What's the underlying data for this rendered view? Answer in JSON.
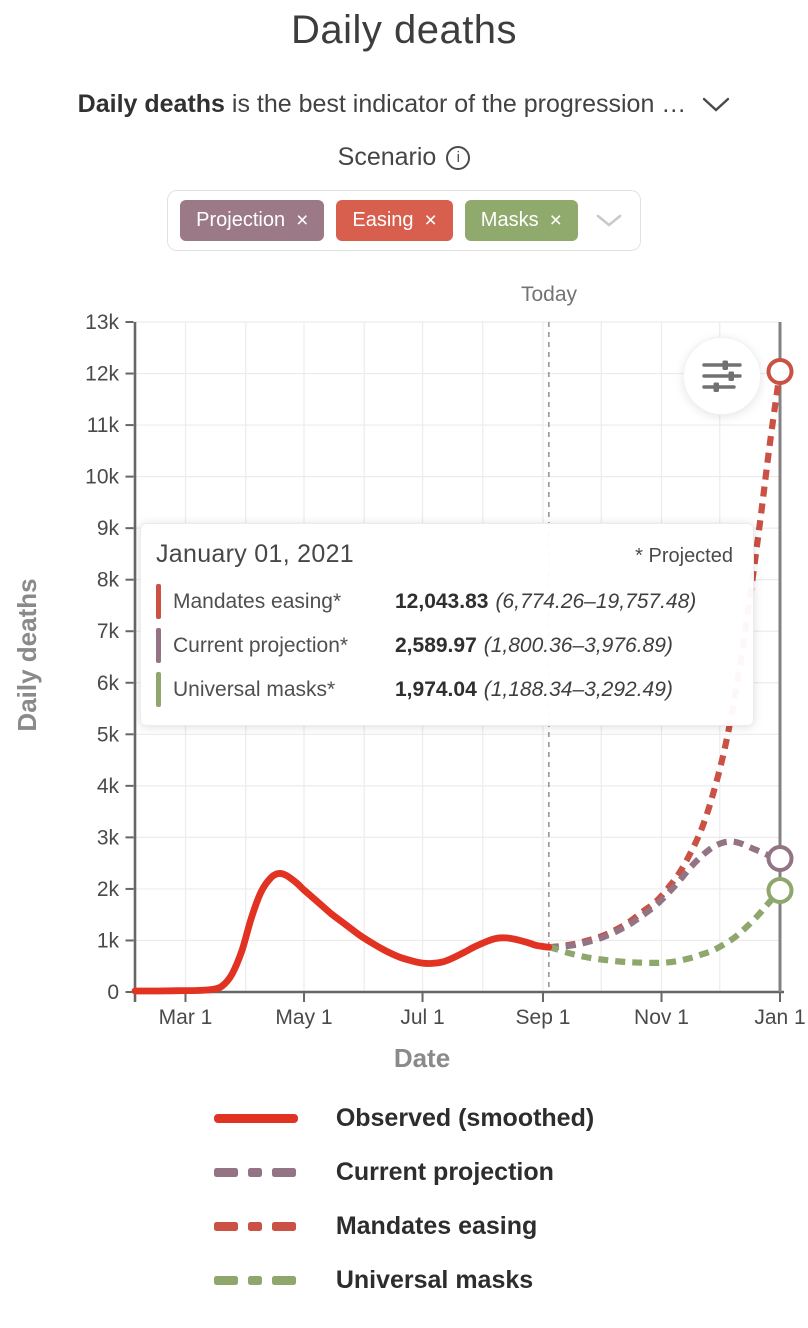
{
  "page": {
    "title": "Daily deaths"
  },
  "subtitle": {
    "lead": "Daily deaths",
    "rest": " is the best indicator of the progression …"
  },
  "scenario": {
    "label": "Scenario"
  },
  "icons": {
    "info": "i",
    "close": "×"
  },
  "chips": {
    "items": [
      {
        "label": "Projection",
        "color": "#9b7987"
      },
      {
        "label": "Easing",
        "color": "#d85f4e"
      },
      {
        "label": "Masks",
        "color": "#90a96d"
      }
    ]
  },
  "chart": {
    "today_label": "Today",
    "x_axis_label": "Date",
    "y_axis_label": "Daily deaths"
  },
  "tooltip": {
    "date": "January 01, 2021",
    "projected_note": "* Projected",
    "rows": [
      {
        "label": "Mandates easing*",
        "value": "12,043.83",
        "range": "(6,774.26–19,757.48)",
        "color": "#ca5143"
      },
      {
        "label": "Current projection*",
        "value": "2,589.97",
        "range": "(1,800.36–3,976.89)",
        "color": "#937384"
      },
      {
        "label": "Universal masks*",
        "value": "1,974.04",
        "range": "(1,188.34–3,292.49)",
        "color": "#8fa76c"
      }
    ]
  },
  "legend": {
    "items": [
      {
        "label": "Observed (smoothed)",
        "style": "solid",
        "color": "#e13222"
      },
      {
        "label": "Current projection",
        "style": "dashed",
        "color": "#937384"
      },
      {
        "label": "Mandates easing",
        "style": "dashed",
        "color": "#ca5143"
      },
      {
        "label": "Universal masks",
        "style": "dashed",
        "color": "#8fa76c"
      }
    ]
  },
  "chart_data": {
    "type": "line",
    "title": "Daily deaths",
    "xlabel": "Date",
    "ylabel": "Daily deaths",
    "x_unit": "days since 2020-02-01",
    "y_unit": "deaths per day, thousands",
    "ylim": [
      0,
      13
    ],
    "x_domain_days": [
      3,
      335
    ],
    "today_day": 216,
    "month_grid_days": [
      29,
      60,
      90,
      121,
      151,
      182,
      213,
      243,
      274,
      304,
      335
    ],
    "x_tick_days": [
      29,
      90,
      151,
      213,
      274,
      335
    ],
    "x_tick_labels": [
      "Mar 1",
      "May 1",
      "Jul 1",
      "Sep 1",
      "Nov 1",
      "Jan 1"
    ],
    "y_tick_labels": [
      "0",
      "1k",
      "2k",
      "3k",
      "4k",
      "5k",
      "6k",
      "7k",
      "8k",
      "9k",
      "10k",
      "11k",
      "12k",
      "13k"
    ],
    "series": [
      {
        "name": "Mandates easing",
        "color": "#ca5143",
        "dashed": true,
        "end_marker": true,
        "points": [
          [
            216,
            0.87
          ],
          [
            222,
            0.89
          ],
          [
            229,
            0.93
          ],
          [
            236,
            1.0
          ],
          [
            243,
            1.08
          ],
          [
            250,
            1.2
          ],
          [
            257,
            1.35
          ],
          [
            264,
            1.55
          ],
          [
            271,
            1.75
          ],
          [
            277,
            2.0
          ],
          [
            283,
            2.3
          ],
          [
            289,
            2.7
          ],
          [
            295,
            3.2
          ],
          [
            301,
            3.9
          ],
          [
            307,
            4.8
          ],
          [
            313,
            6.0
          ],
          [
            319,
            7.5
          ],
          [
            325,
            9.2
          ],
          [
            330,
            10.7
          ],
          [
            335,
            12.04
          ]
        ]
      },
      {
        "name": "Current projection",
        "color": "#937384",
        "dashed": true,
        "end_marker": true,
        "points": [
          [
            216,
            0.87
          ],
          [
            222,
            0.88
          ],
          [
            229,
            0.91
          ],
          [
            236,
            0.97
          ],
          [
            243,
            1.05
          ],
          [
            250,
            1.16
          ],
          [
            257,
            1.3
          ],
          [
            264,
            1.48
          ],
          [
            271,
            1.68
          ],
          [
            277,
            1.9
          ],
          [
            283,
            2.15
          ],
          [
            289,
            2.42
          ],
          [
            295,
            2.65
          ],
          [
            300,
            2.8
          ],
          [
            305,
            2.89
          ],
          [
            310,
            2.92
          ],
          [
            315,
            2.88
          ],
          [
            320,
            2.8
          ],
          [
            325,
            2.72
          ],
          [
            330,
            2.64
          ],
          [
            335,
            2.59
          ]
        ]
      },
      {
        "name": "Universal masks",
        "color": "#8fa76c",
        "dashed": true,
        "end_marker": true,
        "points": [
          [
            216,
            0.87
          ],
          [
            220,
            0.83
          ],
          [
            225,
            0.77
          ],
          [
            230,
            0.72
          ],
          [
            236,
            0.67
          ],
          [
            243,
            0.63
          ],
          [
            250,
            0.6
          ],
          [
            257,
            0.58
          ],
          [
            263,
            0.57
          ],
          [
            270,
            0.565
          ],
          [
            276,
            0.57
          ],
          [
            282,
            0.6
          ],
          [
            288,
            0.65
          ],
          [
            294,
            0.72
          ],
          [
            300,
            0.8
          ],
          [
            306,
            0.92
          ],
          [
            312,
            1.07
          ],
          [
            318,
            1.27
          ],
          [
            324,
            1.5
          ],
          [
            329,
            1.72
          ],
          [
            335,
            1.97
          ]
        ]
      },
      {
        "name": "Observed (smoothed)",
        "color": "#e13222",
        "dashed": false,
        "end_marker": false,
        "points": [
          [
            3,
            0.02
          ],
          [
            15,
            0.02
          ],
          [
            25,
            0.025
          ],
          [
            35,
            0.03
          ],
          [
            43,
            0.05
          ],
          [
            48,
            0.12
          ],
          [
            53,
            0.35
          ],
          [
            58,
            0.8
          ],
          [
            63,
            1.45
          ],
          [
            68,
            1.95
          ],
          [
            73,
            2.22
          ],
          [
            77,
            2.3
          ],
          [
            81,
            2.26
          ],
          [
            86,
            2.12
          ],
          [
            90,
            1.98
          ],
          [
            97,
            1.75
          ],
          [
            104,
            1.52
          ],
          [
            111,
            1.32
          ],
          [
            118,
            1.12
          ],
          [
            125,
            0.95
          ],
          [
            132,
            0.8
          ],
          [
            139,
            0.68
          ],
          [
            146,
            0.6
          ],
          [
            151,
            0.56
          ],
          [
            156,
            0.555
          ],
          [
            161,
            0.58
          ],
          [
            166,
            0.65
          ],
          [
            172,
            0.76
          ],
          [
            178,
            0.88
          ],
          [
            184,
            0.98
          ],
          [
            189,
            1.04
          ],
          [
            194,
            1.05
          ],
          [
            199,
            1.02
          ],
          [
            205,
            0.96
          ],
          [
            210,
            0.9
          ],
          [
            216,
            0.87
          ]
        ]
      }
    ]
  }
}
